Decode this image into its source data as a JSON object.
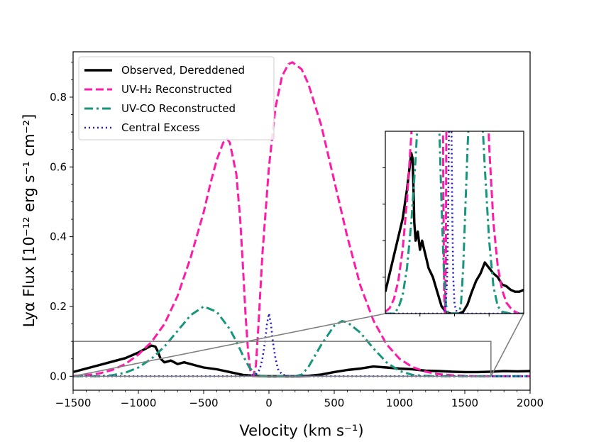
{
  "chart_data": {
    "type": "line",
    "title": "",
    "xlabel": "Velocity (km s⁻¹)",
    "ylabel": "Lyα Flux [10⁻¹² erg s⁻¹ cm⁻²]",
    "xlim": [
      -1500,
      2000
    ],
    "ylim": [
      -0.04,
      0.93
    ],
    "x_ticks": [
      -1500,
      -1000,
      -500,
      0,
      500,
      1000,
      1500,
      2000
    ],
    "x_tick_labels": [
      "−1500",
      "−1000",
      "−500",
      "0",
      "500",
      "1000",
      "1500",
      "2000"
    ],
    "y_ticks": [
      0.0,
      0.2,
      0.4,
      0.6,
      0.8
    ],
    "y_tick_labels": [
      "0.0",
      "0.2",
      "0.4",
      "0.6",
      "0.8"
    ],
    "legend_position": "top-left",
    "series": [
      {
        "name": "Observed, Dereddened",
        "color": "#000000",
        "style": "solid",
        "x": [
          -1500,
          -1400,
          -1300,
          -1200,
          -1100,
          -1000,
          -950,
          -900,
          -870,
          -850,
          -830,
          -800,
          -750,
          -700,
          -650,
          -600,
          -550,
          -500,
          -400,
          -300,
          -200,
          -100,
          0,
          100,
          200,
          300,
          400,
          500,
          600,
          700,
          800,
          900,
          1000,
          1100,
          1200,
          1300,
          1400,
          1500,
          1600,
          1700,
          1800,
          1900,
          2000
        ],
        "y": [
          0.012,
          0.022,
          0.032,
          0.042,
          0.052,
          0.068,
          0.078,
          0.088,
          0.085,
          0.07,
          0.05,
          0.04,
          0.045,
          0.035,
          0.04,
          0.035,
          0.03,
          0.025,
          0.02,
          0.012,
          0.004,
          0.001,
          0.0,
          0.0,
          0.0,
          0.001,
          0.005,
          0.012,
          0.018,
          0.022,
          0.028,
          0.025,
          0.022,
          0.02,
          0.016,
          0.015,
          0.013,
          0.012,
          0.012,
          0.013,
          0.015,
          0.014,
          0.015
        ]
      },
      {
        "name": "UV-H₂ Reconstructed",
        "color": "#ff1aa8",
        "style": "dashed",
        "x": [
          -1500,
          -1400,
          -1300,
          -1200,
          -1100,
          -1000,
          -900,
          -800,
          -700,
          -600,
          -500,
          -450,
          -400,
          -350,
          -320,
          -300,
          -250,
          -220,
          -200,
          -180,
          -160,
          -140,
          -120,
          -100,
          -80,
          -50,
          0,
          50,
          100,
          150,
          180,
          250,
          300,
          400,
          500,
          600,
          700,
          800,
          900,
          1000,
          1100,
          1200,
          1300,
          1400,
          1500,
          1600,
          1700,
          1800,
          1900,
          2000
        ],
        "y": [
          0.001,
          0.003,
          0.008,
          0.018,
          0.035,
          0.062,
          0.098,
          0.15,
          0.23,
          0.34,
          0.47,
          0.55,
          0.62,
          0.67,
          0.68,
          0.67,
          0.58,
          0.45,
          0.32,
          0.18,
          0.07,
          0.01,
          0.0,
          0.03,
          0.15,
          0.35,
          0.6,
          0.77,
          0.86,
          0.895,
          0.9,
          0.88,
          0.84,
          0.72,
          0.56,
          0.4,
          0.26,
          0.16,
          0.092,
          0.05,
          0.026,
          0.013,
          0.006,
          0.003,
          0.001,
          0.0,
          0.0,
          0.0,
          0.0,
          0.0
        ]
      },
      {
        "name": "UV-CO Reconstructed",
        "color": "#16967c",
        "style": "dashdot",
        "x": [
          -1500,
          -1300,
          -1200,
          -1100,
          -1000,
          -900,
          -800,
          -700,
          -600,
          -500,
          -400,
          -300,
          -250,
          -200,
          -150,
          -100,
          -50,
          0,
          50,
          100,
          150,
          200,
          250,
          300,
          400,
          500,
          560,
          600,
          700,
          800,
          900,
          1000,
          1100,
          1200,
          1400,
          2000
        ],
        "y": [
          0.0,
          0.0,
          0.003,
          0.01,
          0.025,
          0.05,
          0.085,
          0.13,
          0.175,
          0.2,
          0.185,
          0.135,
          0.1,
          0.06,
          0.025,
          0.005,
          0.0,
          0.0,
          0.0,
          0.0,
          0.0,
          0.0,
          0.005,
          0.025,
          0.09,
          0.145,
          0.158,
          0.155,
          0.125,
          0.08,
          0.04,
          0.015,
          0.004,
          0.001,
          0.0,
          0.0
        ]
      },
      {
        "name": "Central Excess",
        "color": "#2419c8",
        "style": "dotted",
        "x": [
          -1500,
          -200,
          -150,
          -100,
          -70,
          -50,
          -30,
          -15,
          0,
          15,
          30,
          50,
          70,
          100,
          150,
          200,
          2000
        ],
        "y": [
          0.0,
          0.0,
          0.001,
          0.005,
          0.02,
          0.05,
          0.1,
          0.15,
          0.18,
          0.15,
          0.1,
          0.05,
          0.02,
          0.005,
          0.001,
          0.0,
          0.0
        ]
      }
    ],
    "inset": {
      "zoom_region": {
        "x": [
          -1500,
          1700
        ],
        "y": [
          0.0,
          0.1
        ]
      },
      "connector_color": "#808080"
    }
  }
}
